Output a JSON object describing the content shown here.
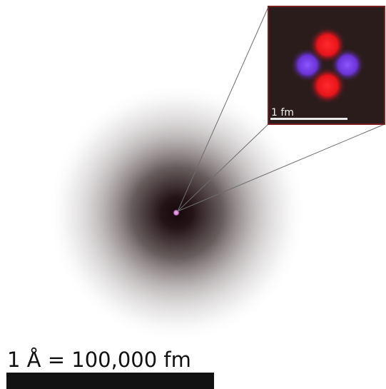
{
  "diagram": {
    "inset": {
      "scale_label": "1 fm",
      "frame_color": "#7a1f1f",
      "background_color": "#2b1c1c",
      "proton_color": "#e8141b",
      "neutron_color": "#6b33d6",
      "icon": "nucleus-icon"
    },
    "atom": {
      "cloud_color": "#241317",
      "nucleus_color": "#d884d8",
      "icon": "electron-cloud-icon"
    },
    "scale_bar": {
      "label": "1 Å = 100,000 fm",
      "bar_color": "#121212"
    }
  }
}
